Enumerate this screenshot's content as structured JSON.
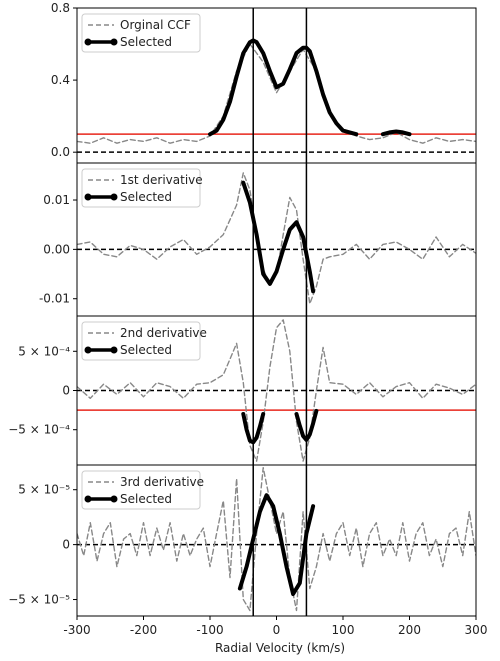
{
  "chart_data": {
    "type": "line",
    "shared_x": {
      "xlabel": "Radial Velocity (km/s)",
      "xlim": [
        -300,
        300
      ],
      "xticks": [
        -300,
        -200,
        -100,
        0,
        100,
        200,
        300
      ],
      "xtick_labels": [
        "-300",
        "-200",
        "-100",
        "0",
        "100",
        "200",
        "300"
      ]
    },
    "vertical_lines_x": [
      -35,
      45
    ],
    "panels": [
      {
        "name": "ccf",
        "ylim": [
          -0.06,
          0.8
        ],
        "yticks": [
          0.0,
          0.4,
          0.8
        ],
        "ytick_labels": [
          "0.0",
          "0.4",
          "0.8"
        ],
        "legend": {
          "position": "top-left",
          "entries": [
            "Orginal CCF",
            "Selected"
          ]
        },
        "zero_line": 0.0,
        "threshold": 0.1,
        "series": [
          {
            "name": "Orginal CCF",
            "style": "dashed-gray",
            "x": [
              -300,
              -280,
              -260,
              -240,
              -220,
              -200,
              -180,
              -160,
              -140,
              -120,
              -100,
              -80,
              -60,
              -40,
              -20,
              0,
              20,
              40,
              60,
              80,
              100,
              120,
              140,
              160,
              180,
              200,
              220,
              240,
              260,
              280,
              300
            ],
            "y": [
              0.06,
              0.05,
              0.08,
              0.05,
              0.07,
              0.06,
              0.08,
              0.05,
              0.07,
              0.06,
              0.09,
              0.2,
              0.45,
              0.6,
              0.5,
              0.33,
              0.45,
              0.57,
              0.45,
              0.22,
              0.12,
              0.09,
              0.07,
              0.08,
              0.11,
              0.07,
              0.05,
              0.08,
              0.06,
              0.07,
              0.06
            ]
          },
          {
            "name": "Selected",
            "style": "thick-black",
            "x": [
              -100,
              -90,
              -80,
              -70,
              -60,
              -50,
              -40,
              -35,
              -30,
              -20,
              -10,
              0,
              10,
              20,
              30,
              40,
              45,
              50,
              60,
              70,
              80,
              90,
              100,
              110,
              120
            ],
            "y": [
              0.1,
              0.12,
              0.18,
              0.28,
              0.42,
              0.55,
              0.61,
              0.62,
              0.61,
              0.55,
              0.45,
              0.36,
              0.38,
              0.46,
              0.55,
              0.58,
              0.58,
              0.56,
              0.45,
              0.32,
              0.22,
              0.16,
              0.12,
              0.11,
              0.1
            ]
          },
          {
            "name": "Selected",
            "style": "thick-black",
            "x": [
              160,
              170,
              180,
              190,
              200
            ],
            "y": [
              0.1,
              0.11,
              0.115,
              0.11,
              0.1
            ]
          }
        ]
      },
      {
        "name": "d1",
        "ylim": [
          -0.0135,
          0.0175
        ],
        "yticks": [
          0.01,
          0.0,
          -0.01
        ],
        "ytick_labels": [
          "0.01",
          "0.00",
          "-0.01"
        ],
        "legend": {
          "position": "top-left",
          "entries": [
            "1st derivative",
            "Selected"
          ]
        },
        "zero_line": 0.0,
        "series": [
          {
            "name": "1st derivative",
            "style": "dashed-gray",
            "x": [
              -300,
              -280,
              -260,
              -240,
              -220,
              -200,
              -180,
              -160,
              -140,
              -120,
              -100,
              -80,
              -60,
              -50,
              -40,
              -30,
              -20,
              -10,
              0,
              10,
              20,
              30,
              40,
              50,
              60,
              70,
              80,
              100,
              120,
              140,
              160,
              180,
              200,
              220,
              240,
              260,
              280,
              300
            ],
            "y": [
              0.001,
              0.0015,
              -0.001,
              -0.0015,
              0.0008,
              0.0,
              -0.002,
              0.0005,
              0.002,
              -0.001,
              0.0005,
              0.003,
              0.009,
              0.0155,
              0.012,
              0.003,
              -0.004,
              -0.007,
              -0.005,
              0.003,
              0.0105,
              0.008,
              -0.002,
              -0.011,
              -0.0075,
              -0.002,
              -0.0015,
              -0.001,
              0.001,
              -0.002,
              0.001,
              0.0015,
              0.0,
              -0.002,
              0.0025,
              -0.0015,
              0.001,
              -0.0008
            ]
          },
          {
            "name": "Selected",
            "style": "thick-black",
            "x": [
              -50,
              -40,
              -30,
              -20,
              -10,
              0,
              10,
              20,
              30,
              40,
              50,
              55
            ],
            "y": [
              0.0135,
              0.0095,
              0.003,
              -0.005,
              -0.007,
              -0.0045,
              0.0,
              0.004,
              0.0055,
              0.0025,
              -0.0045,
              -0.0085
            ]
          }
        ]
      },
      {
        "name": "d2",
        "ylim": [
          -0.00095,
          0.00095
        ],
        "yticks": [
          0.0005,
          0.0,
          -0.0005
        ],
        "ytick_labels": [
          "5 × 10⁻⁴",
          "0",
          "−5 × 10⁻⁴"
        ],
        "legend": {
          "position": "top-left",
          "entries": [
            "2nd derivative",
            "Selected"
          ]
        },
        "zero_line": 0.0,
        "threshold": -0.00025,
        "series": [
          {
            "name": "2nd derivative",
            "style": "dashed-gray",
            "x": [
              -300,
              -280,
              -260,
              -240,
              -220,
              -200,
              -180,
              -160,
              -140,
              -120,
              -100,
              -80,
              -70,
              -60,
              -50,
              -40,
              -30,
              -20,
              -10,
              0,
              10,
              20,
              30,
              40,
              50,
              60,
              70,
              80,
              100,
              120,
              140,
              160,
              180,
              200,
              220,
              240,
              260,
              280,
              300
            ],
            "y": [
              5e-05,
              -0.0001,
              8e-05,
              -5e-05,
              0.0001,
              -8e-05,
              0.0001,
              5e-05,
              -0.0001,
              8e-05,
              0.0001,
              0.0002,
              0.0004,
              0.0006,
              0.0001,
              -0.0007,
              -0.0009,
              -0.0004,
              0.0003,
              0.0008,
              0.0009,
              0.0005,
              -0.0004,
              -0.0009,
              -0.0006,
              0.0,
              0.00055,
              0.0001,
              8e-05,
              -5e-05,
              0.0001,
              -8e-05,
              5e-05,
              0.0001,
              -0.0001,
              8e-05,
              3e-05,
              -5e-05,
              8e-05
            ]
          },
          {
            "name": "Selected",
            "style": "thick-black",
            "x": [
              -50,
              -45,
              -40,
              -35,
              -30,
              -25,
              -20
            ],
            "y": [
              -0.0003,
              -0.0005,
              -0.00064,
              -0.00066,
              -0.0006,
              -0.00046,
              -0.0003
            ]
          },
          {
            "name": "Selected",
            "style": "thick-black",
            "x": [
              30,
              35,
              40,
              45,
              50,
              55,
              60
            ],
            "y": [
              -0.0003,
              -0.00045,
              -0.00058,
              -0.00063,
              -0.00056,
              -0.00042,
              -0.00026
            ]
          }
        ]
      },
      {
        "name": "d3",
        "ylim": [
          -6.5e-05,
          7.25e-05
        ],
        "yticks": [
          5e-05,
          0.0,
          -5e-05
        ],
        "ytick_labels": [
          "5 × 10⁻⁵",
          "0",
          "−5 × 10⁻⁵"
        ],
        "legend": {
          "position": "top-left",
          "entries": [
            "3rd derivative",
            "Selected"
          ]
        },
        "zero_line": 0.0,
        "series": [
          {
            "name": "3rd derivative",
            "style": "dashed-gray",
            "x": [
              -300,
              -290,
              -280,
              -270,
              -260,
              -250,
              -240,
              -230,
              -220,
              -210,
              -200,
              -190,
              -180,
              -170,
              -160,
              -150,
              -140,
              -130,
              -120,
              -110,
              -100,
              -90,
              -80,
              -70,
              -60,
              -50,
              -40,
              -30,
              -20,
              -10,
              0,
              10,
              20,
              30,
              40,
              50,
              60,
              70,
              80,
              90,
              100,
              110,
              120,
              130,
              140,
              150,
              160,
              170,
              180,
              190,
              200,
              210,
              220,
              230,
              240,
              250,
              260,
              270,
              280,
              290,
              300
            ],
            "y": [
              1e-05,
              -1e-05,
              2e-05,
              -1.5e-05,
              1e-05,
              2e-05,
              -2e-05,
              5e-06,
              1e-05,
              -1e-05,
              2e-05,
              -1e-05,
              1.5e-05,
              -5e-06,
              2e-05,
              -1.5e-05,
              1e-05,
              -1e-05,
              5e-06,
              1.5e-05,
              -2e-05,
              1e-05,
              4e-05,
              -3e-05,
              6e-05,
              -5e-05,
              -6e-05,
              1e-05,
              7e-05,
              4e-05,
              1e-05,
              3e-05,
              -3e-05,
              -6e-05,
              3e-05,
              -4e-05,
              -2e-05,
              1e-05,
              -1.5e-05,
              1e-05,
              2e-05,
              -1e-05,
              1.5e-05,
              -2e-05,
              1e-05,
              2e-05,
              -1e-05,
              5e-06,
              -1e-05,
              2e-05,
              -1.5e-05,
              1e-05,
              2e-05,
              -1e-05,
              5e-06,
              -2e-05,
              1e-05,
              1.5e-05,
              -1e-05,
              3e-05,
              -1e-05
            ]
          },
          {
            "name": "Selected",
            "style": "thick-black",
            "x": [
              -55,
              -45,
              -35,
              -25,
              -15,
              -5,
              5,
              15,
              25,
              35,
              45,
              55
            ],
            "y": [
              -4e-05,
              -2e-05,
              5e-06,
              3e-05,
              4.5e-05,
              3.5e-05,
              1e-05,
              -2e-05,
              -4.5e-05,
              -3.5e-05,
              1e-05,
              3.5e-05
            ]
          }
        ]
      }
    ]
  }
}
